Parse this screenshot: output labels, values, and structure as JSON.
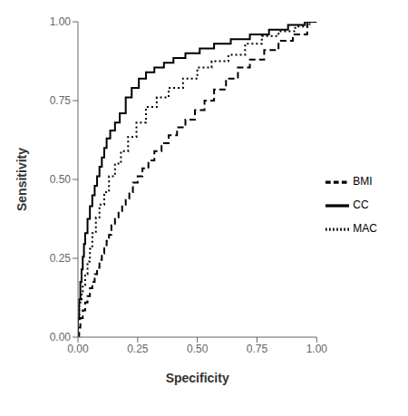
{
  "chart_data": {
    "type": "line",
    "title": "",
    "x_label": "Specificity",
    "y_label": "Sensitivity",
    "xlim": [
      0.0,
      1.0
    ],
    "ylim": [
      0.0,
      1.0
    ],
    "xticks": [
      {
        "value": 0.0,
        "label": "0.00"
      },
      {
        "value": 0.25,
        "label": "0.25"
      },
      {
        "value": 0.5,
        "label": "0.50"
      },
      {
        "value": 0.75,
        "label": "0.75"
      },
      {
        "value": 1.0,
        "label": "1.00"
      }
    ],
    "yticks": [
      {
        "value": 0.0,
        "label": "0.00"
      },
      {
        "value": 0.25,
        "label": "0.25"
      },
      {
        "value": 0.5,
        "label": "0.50"
      },
      {
        "value": 0.75,
        "label": "0.75"
      },
      {
        "value": 1.0,
        "label": "1.00"
      }
    ],
    "grid": false,
    "legend": "right",
    "series": [
      {
        "name": "BMI",
        "color": "#000000",
        "line_style": "dashed",
        "x": [
          0.0,
          0.005,
          0.005,
          0.01,
          0.01,
          0.02,
          0.02,
          0.03,
          0.03,
          0.04,
          0.04,
          0.05,
          0.05,
          0.06,
          0.06,
          0.07,
          0.07,
          0.08,
          0.08,
          0.09,
          0.09,
          0.1,
          0.1,
          0.11,
          0.11,
          0.12,
          0.12,
          0.13,
          0.13,
          0.14,
          0.14,
          0.155,
          0.155,
          0.17,
          0.17,
          0.185,
          0.185,
          0.2,
          0.2,
          0.215,
          0.215,
          0.23,
          0.23,
          0.25,
          0.25,
          0.27,
          0.27,
          0.295,
          0.295,
          0.32,
          0.32,
          0.35,
          0.35,
          0.38,
          0.38,
          0.415,
          0.415,
          0.45,
          0.45,
          0.49,
          0.49,
          0.53,
          0.53,
          0.57,
          0.57,
          0.62,
          0.62,
          0.67,
          0.67,
          0.72,
          0.72,
          0.78,
          0.78,
          0.84,
          0.84,
          0.9,
          0.9,
          0.96,
          0.96,
          1.0
        ],
        "values": [
          0.0,
          0.0,
          0.03,
          0.03,
          0.06,
          0.06,
          0.085,
          0.085,
          0.11,
          0.11,
          0.13,
          0.13,
          0.155,
          0.155,
          0.175,
          0.175,
          0.2,
          0.2,
          0.22,
          0.22,
          0.245,
          0.245,
          0.265,
          0.265,
          0.285,
          0.285,
          0.305,
          0.305,
          0.325,
          0.325,
          0.355,
          0.355,
          0.375,
          0.375,
          0.4,
          0.4,
          0.42,
          0.42,
          0.44,
          0.44,
          0.46,
          0.46,
          0.49,
          0.49,
          0.51,
          0.51,
          0.535,
          0.535,
          0.56,
          0.56,
          0.59,
          0.59,
          0.615,
          0.615,
          0.64,
          0.64,
          0.665,
          0.665,
          0.69,
          0.69,
          0.72,
          0.72,
          0.75,
          0.75,
          0.785,
          0.785,
          0.82,
          0.82,
          0.855,
          0.855,
          0.88,
          0.88,
          0.91,
          0.91,
          0.94,
          0.94,
          0.96,
          0.96,
          1.0,
          1.0
        ]
      },
      {
        "name": "CC",
        "color": "#000000",
        "line_style": "solid",
        "x": [
          0.0,
          0.0,
          0.005,
          0.005,
          0.01,
          0.01,
          0.015,
          0.015,
          0.02,
          0.02,
          0.025,
          0.025,
          0.03,
          0.03,
          0.04,
          0.04,
          0.05,
          0.05,
          0.06,
          0.06,
          0.07,
          0.07,
          0.08,
          0.08,
          0.09,
          0.09,
          0.1,
          0.1,
          0.11,
          0.11,
          0.12,
          0.12,
          0.135,
          0.135,
          0.155,
          0.155,
          0.175,
          0.175,
          0.2,
          0.2,
          0.225,
          0.225,
          0.255,
          0.255,
          0.285,
          0.285,
          0.32,
          0.32,
          0.36,
          0.36,
          0.4,
          0.4,
          0.45,
          0.45,
          0.51,
          0.51,
          0.57,
          0.57,
          0.64,
          0.64,
          0.72,
          0.72,
          0.8,
          0.8,
          0.88,
          0.88,
          0.95,
          0.95,
          1.0
        ],
        "values": [
          0.0,
          0.06,
          0.06,
          0.12,
          0.12,
          0.175,
          0.175,
          0.215,
          0.215,
          0.255,
          0.255,
          0.295,
          0.295,
          0.33,
          0.33,
          0.375,
          0.375,
          0.415,
          0.415,
          0.45,
          0.45,
          0.48,
          0.48,
          0.51,
          0.51,
          0.54,
          0.54,
          0.57,
          0.57,
          0.6,
          0.6,
          0.63,
          0.63,
          0.655,
          0.655,
          0.68,
          0.68,
          0.71,
          0.71,
          0.76,
          0.76,
          0.79,
          0.79,
          0.82,
          0.82,
          0.84,
          0.84,
          0.855,
          0.855,
          0.87,
          0.87,
          0.885,
          0.885,
          0.9,
          0.9,
          0.915,
          0.915,
          0.93,
          0.93,
          0.945,
          0.945,
          0.96,
          0.96,
          0.975,
          0.975,
          0.99,
          0.99,
          1.0,
          1.0
        ]
      },
      {
        "name": "MAC",
        "color": "#000000",
        "line_style": "dotted",
        "x": [
          0.0,
          0.0,
          0.005,
          0.005,
          0.01,
          0.01,
          0.015,
          0.015,
          0.02,
          0.02,
          0.03,
          0.03,
          0.04,
          0.04,
          0.05,
          0.05,
          0.06,
          0.06,
          0.075,
          0.075,
          0.09,
          0.09,
          0.11,
          0.11,
          0.13,
          0.13,
          0.155,
          0.155,
          0.18,
          0.18,
          0.21,
          0.21,
          0.245,
          0.245,
          0.285,
          0.285,
          0.33,
          0.33,
          0.38,
          0.38,
          0.44,
          0.44,
          0.5,
          0.5,
          0.56,
          0.56,
          0.63,
          0.63,
          0.7,
          0.7,
          0.77,
          0.77,
          0.84,
          0.84,
          0.91,
          0.91,
          0.97,
          0.97,
          1.0
        ],
        "values": [
          0.0,
          0.05,
          0.05,
          0.1,
          0.1,
          0.12,
          0.12,
          0.145,
          0.145,
          0.165,
          0.165,
          0.2,
          0.2,
          0.24,
          0.24,
          0.28,
          0.28,
          0.33,
          0.33,
          0.38,
          0.38,
          0.42,
          0.42,
          0.46,
          0.46,
          0.51,
          0.51,
          0.55,
          0.55,
          0.59,
          0.59,
          0.635,
          0.635,
          0.68,
          0.68,
          0.73,
          0.73,
          0.76,
          0.76,
          0.79,
          0.79,
          0.82,
          0.82,
          0.855,
          0.855,
          0.875,
          0.875,
          0.895,
          0.895,
          0.93,
          0.93,
          0.955,
          0.955,
          0.97,
          0.97,
          0.985,
          0.985,
          1.0,
          1.0
        ]
      }
    ]
  }
}
